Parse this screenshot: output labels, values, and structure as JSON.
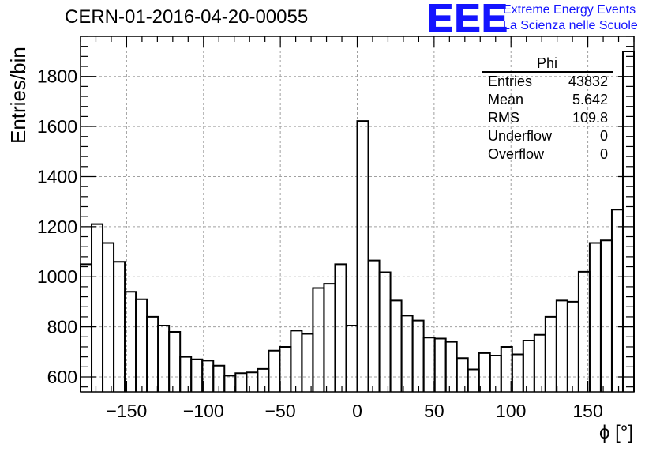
{
  "chart_data": {
    "type": "bar",
    "title": "CERN-01-2016-04-20-00055",
    "xlabel": "ϕ [°]",
    "ylabel": "Entries/bin",
    "xlim": [
      -180,
      180
    ],
    "ylim": [
      540,
      1960
    ],
    "grid": true,
    "bin_width": 7.2,
    "x_ticks": [
      -150,
      -100,
      -50,
      0,
      50,
      100,
      150
    ],
    "y_ticks": [
      600,
      800,
      1000,
      1200,
      1400,
      1600,
      1800
    ],
    "values": [
      1050,
      1210,
      1135,
      1060,
      940,
      910,
      840,
      805,
      780,
      680,
      670,
      665,
      645,
      605,
      615,
      618,
      632,
      705,
      720,
      785,
      772,
      955,
      972,
      1050,
      805,
      1622,
      1065,
      1018,
      905,
      845,
      825,
      757,
      753,
      740,
      675,
      630,
      695,
      685,
      720,
      690,
      745,
      768,
      840,
      905,
      900,
      1020,
      1135,
      1145,
      1268,
      1900
    ],
    "stats": {
      "name": "Phi",
      "rows": [
        {
          "label": "Entries",
          "value": "43832"
        },
        {
          "label": "Mean",
          "value": "5.642"
        },
        {
          "label": "RMS",
          "value": "109.8"
        },
        {
          "label": "Underflow",
          "value": "0"
        },
        {
          "label": "Overflow",
          "value": "0"
        }
      ]
    }
  },
  "branding": {
    "logo": "EEE",
    "line1": "Extreme Energy Events",
    "line2": "La Scienza nelle Scuole",
    "color": "#1414ff"
  }
}
